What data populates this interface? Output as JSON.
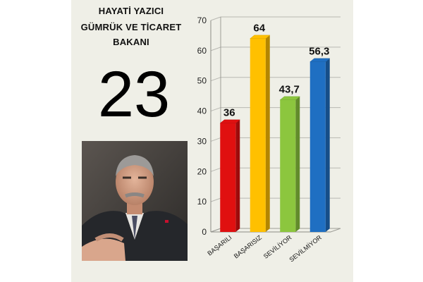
{
  "header": {
    "line1": "HAYATİ YAZICI",
    "line2": "GÜMRÜK VE TİCARET",
    "line3": "BAKANI"
  },
  "rank_number": "23",
  "photo": {
    "subject": "portrait-photo"
  },
  "chart_data": {
    "type": "bar",
    "categories": [
      "BAŞARILI",
      "BAŞARISIZ",
      "SEVİLİYOR",
      "SEVİLMİYOR"
    ],
    "values": [
      36,
      64,
      43.7,
      56.3
    ],
    "value_labels": [
      "36",
      "64",
      "43,7",
      "56,3"
    ],
    "colors": [
      "#e01010",
      "#ffc000",
      "#8cc63e",
      "#1f6fc2"
    ],
    "title": "",
    "xlabel": "",
    "ylabel": "",
    "ylim": [
      0,
      70
    ],
    "yticks": [
      0,
      10,
      20,
      30,
      40,
      50,
      60,
      70
    ],
    "grid": true,
    "style": "3d"
  }
}
